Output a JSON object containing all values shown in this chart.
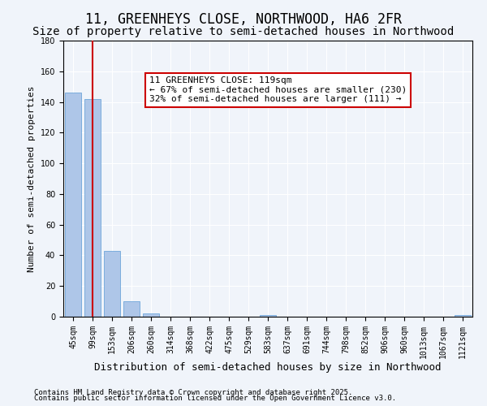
{
  "title": "11, GREENHEYS CLOSE, NORTHWOOD, HA6 2FR",
  "subtitle": "Size of property relative to semi-detached houses in Northwood",
  "xlabel": "Distribution of semi-detached houses by size in Northwood",
  "ylabel": "Number of semi-detached properties",
  "bar_color": "#aec6e8",
  "bar_edge_color": "#5b9bd5",
  "vline_color": "#cc0000",
  "vline_x": 1,
  "categories": [
    "45sqm",
    "99sqm",
    "153sqm",
    "206sqm",
    "260sqm",
    "314sqm",
    "368sqm",
    "422sqm",
    "475sqm",
    "529sqm",
    "583sqm",
    "637sqm",
    "691sqm",
    "744sqm",
    "798sqm",
    "852sqm",
    "906sqm",
    "960sqm",
    "1013sqm",
    "1067sqm",
    "1121sqm"
  ],
  "values": [
    146,
    142,
    43,
    10,
    2,
    0,
    0,
    0,
    0,
    0,
    1,
    0,
    0,
    0,
    0,
    0,
    0,
    0,
    0,
    0,
    1
  ],
  "ylim": [
    0,
    180
  ],
  "yticks": [
    0,
    20,
    40,
    60,
    80,
    100,
    120,
    140,
    160,
    180
  ],
  "annotation_title": "11 GREENHEYS CLOSE: 119sqm",
  "annotation_line1": "← 67% of semi-detached houses are smaller (230)",
  "annotation_line2": "32% of semi-detached houses are larger (111) →",
  "footer1": "Contains HM Land Registry data © Crown copyright and database right 2025.",
  "footer2": "Contains public sector information licensed under the Open Government Licence v3.0.",
  "bg_color": "#f0f4fa",
  "plot_bg_color": "#f0f4fa",
  "grid_color": "#ffffff",
  "box_edge_color": "#cc0000",
  "title_fontsize": 12,
  "subtitle_fontsize": 10,
  "ylabel_fontsize": 8,
  "xlabel_fontsize": 9,
  "tick_fontsize": 7,
  "annotation_fontsize": 8,
  "footer_fontsize": 6.5
}
